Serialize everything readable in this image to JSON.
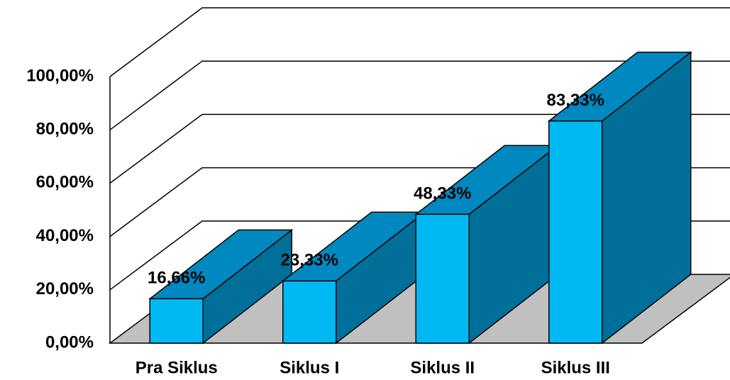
{
  "chart_data": {
    "type": "bar3d",
    "categories": [
      "Pra Siklus",
      "Siklus I",
      "Siklus II",
      "Siklus III"
    ],
    "values": [
      16.66,
      23.33,
      48.33,
      83.33
    ],
    "value_labels": [
      "16,66%",
      "23,33%",
      "48,33%",
      "83,33%"
    ],
    "colors": {
      "front": "#00b8f2",
      "top": "#0088c0",
      "side": "#006f99",
      "floor": "#c0c0c0"
    },
    "ylim": [
      0,
      100
    ],
    "yticks": [
      {
        "value": 0,
        "label": "0,00%"
      },
      {
        "value": 20,
        "label": "20,00%"
      },
      {
        "value": 40,
        "label": "40,00%"
      },
      {
        "value": 60,
        "label": "60,00%"
      },
      {
        "value": 80,
        "label": "80,00%"
      },
      {
        "value": 100,
        "label": "100,00%"
      }
    ],
    "grid": true
  }
}
